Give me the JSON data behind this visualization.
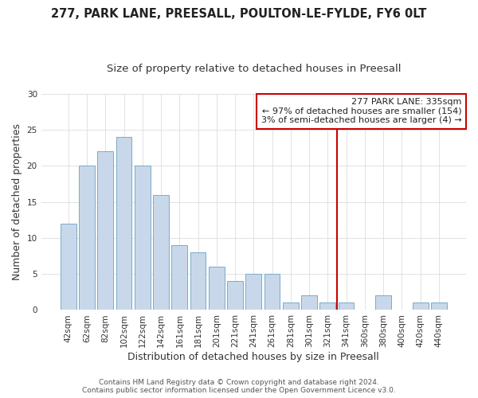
{
  "title1": "277, PARK LANE, PREESALL, POULTON-LE-FYLDE, FY6 0LT",
  "title2": "Size of property relative to detached houses in Preesall",
  "xlabel": "Distribution of detached houses by size in Preesall",
  "ylabel": "Number of detached properties",
  "categories": [
    "42sqm",
    "62sqm",
    "82sqm",
    "102sqm",
    "122sqm",
    "142sqm",
    "161sqm",
    "181sqm",
    "201sqm",
    "221sqm",
    "241sqm",
    "261sqm",
    "281sqm",
    "301sqm",
    "321sqm",
    "341sqm",
    "360sqm",
    "380sqm",
    "400sqm",
    "420sqm",
    "440sqm"
  ],
  "values": [
    12,
    20,
    22,
    24,
    20,
    16,
    9,
    8,
    6,
    4,
    5,
    5,
    1,
    2,
    1,
    1,
    0,
    2,
    0,
    1,
    1
  ],
  "bar_color": "#c8d8ea",
  "bar_edge_color": "#7aaac8",
  "vline_x": 14.5,
  "vline_color": "#cc0000",
  "annotation_text": "277 PARK LANE: 335sqm\n← 97% of detached houses are smaller (154)\n3% of semi-detached houses are larger (4) →",
  "annotation_box_facecolor": "#ffffff",
  "annotation_box_edgecolor": "#cc0000",
  "ylim": [
    0,
    30
  ],
  "yticks": [
    0,
    5,
    10,
    15,
    20,
    25,
    30
  ],
  "footer1": "Contains HM Land Registry data © Crown copyright and database right 2024.",
  "footer2": "Contains public sector information licensed under the Open Government Licence v3.0.",
  "bg_color": "#ffffff",
  "plot_bg_color": "#ffffff",
  "grid_color": "#dddddd",
  "title1_fontsize": 10.5,
  "title2_fontsize": 9.5,
  "axis_label_fontsize": 9,
  "tick_fontsize": 7.5,
  "annotation_fontsize": 8,
  "footer_fontsize": 6.5
}
